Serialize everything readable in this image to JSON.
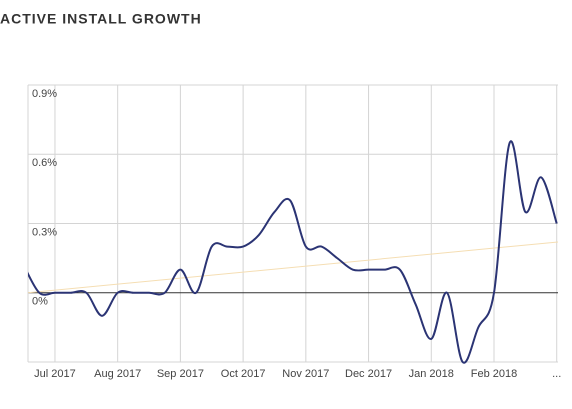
{
  "chart_data": {
    "type": "line",
    "title": "ACTIVE INSTALL GROWTH",
    "categories": [
      null,
      null,
      "Jul 2017",
      null,
      null,
      null,
      "Aug 2017",
      null,
      null,
      null,
      "Sep 2017",
      null,
      null,
      null,
      "Oct 2017",
      null,
      null,
      null,
      "Nov 2017",
      null,
      null,
      null,
      "Dec 2017",
      null,
      null,
      null,
      "Jan 2018",
      null,
      null,
      null,
      "Feb 2018",
      null,
      null,
      null,
      "..."
    ],
    "values": [
      0.12,
      0.0,
      0.0,
      0.0,
      0.0,
      -0.1,
      0.0,
      0.0,
      0.0,
      0.0,
      0.1,
      0.0,
      0.2,
      0.2,
      0.2,
      0.25,
      0.35,
      0.4,
      0.2,
      0.2,
      0.15,
      0.1,
      0.1,
      0.1,
      0.1,
      -0.05,
      -0.2,
      0.0,
      -0.3,
      -0.15,
      0.0,
      0.65,
      0.35,
      0.5,
      0.3
    ],
    "color": "#2b3474",
    "trendline": {
      "values": [
        0.0,
        0.22
      ],
      "color": "#f5deb3"
    },
    "ylim": [
      -0.3,
      0.9
    ],
    "yticks": [
      {
        "value": 0,
        "label": "0%"
      },
      {
        "value": 0.3,
        "label": "0.3%"
      },
      {
        "value": 0.6,
        "label": "0.6%"
      },
      {
        "value": 0.9,
        "label": "0.9%"
      }
    ],
    "grid": true
  }
}
